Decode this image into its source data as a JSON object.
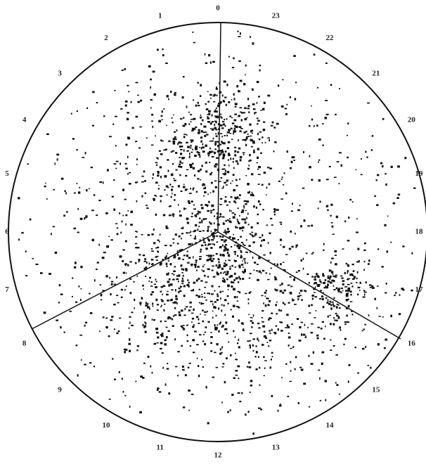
{
  "hour_labels": [
    "0",
    "1",
    "2",
    "3",
    "4",
    "5",
    "6",
    "7",
    "8",
    "9",
    "10",
    "11",
    "12",
    "13",
    "14",
    "15",
    "16",
    "17",
    "18",
    "19",
    "20",
    "21",
    "22",
    "23"
  ]
}
